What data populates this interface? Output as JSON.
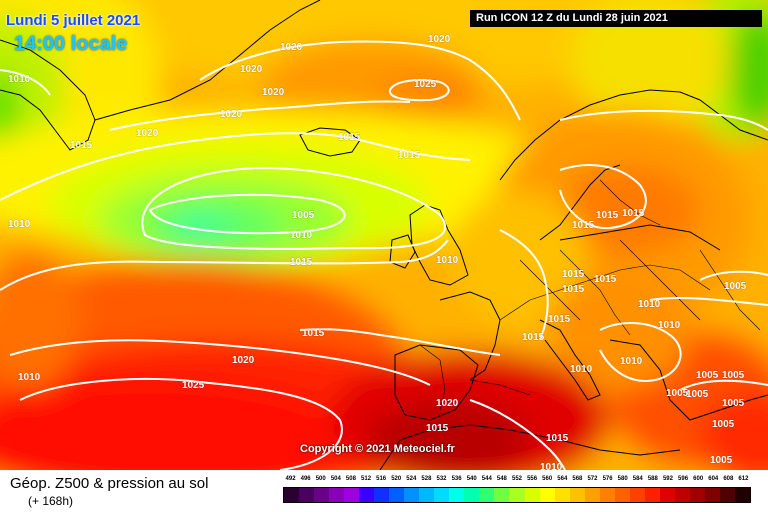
{
  "header": {
    "date": "Lundi 5 juillet 2021",
    "time": "14:00 locale",
    "run": "Run ICON 12 Z du Lundi 28 juin 2021"
  },
  "copyright": "Copyright © 2021 Meteociel.fr",
  "footer": {
    "title": "Géop. Z500 & pression au sol",
    "subtitle": "(+ 168h)"
  },
  "scale": {
    "labels": [
      "492",
      "496",
      "500",
      "504",
      "508",
      "512",
      "516",
      "520",
      "524",
      "528",
      "532",
      "536",
      "540",
      "544",
      "548",
      "552",
      "556",
      "560",
      "564",
      "568",
      "572",
      "576",
      "580",
      "584",
      "588",
      "592",
      "596",
      "600",
      "604",
      "608",
      "612"
    ],
    "colors": [
      "#2a0030",
      "#4a0060",
      "#6a008a",
      "#8a00b8",
      "#a000e0",
      "#3a00ff",
      "#1030ff",
      "#0060ff",
      "#0090ff",
      "#00b8ff",
      "#00dcff",
      "#00ffe8",
      "#00ffb0",
      "#30ff70",
      "#70ff40",
      "#a8ff20",
      "#d8ff00",
      "#ffff00",
      "#ffe000",
      "#ffc000",
      "#ffa000",
      "#ff8000",
      "#ff6000",
      "#ff4000",
      "#ff2000",
      "#e00000",
      "#c00000",
      "#a00000",
      "#800000",
      "#500000",
      "#200000"
    ]
  },
  "isobars": [
    {
      "label": "1020",
      "name": "isobar-label-1020"
    },
    {
      "label": "1020",
      "name": "isobar-label-1020"
    },
    {
      "label": "1020",
      "name": "isobar-label-1020"
    },
    {
      "label": "1020",
      "name": "isobar-label-1020"
    },
    {
      "label": "1020",
      "name": "isobar-label-1020"
    },
    {
      "label": "1020",
      "name": "isobar-label-1020"
    },
    {
      "label": "1025",
      "name": "isobar-label-1025"
    },
    {
      "label": "1010",
      "name": "isobar-label-1010"
    },
    {
      "label": "1015",
      "name": "isobar-label-1015"
    },
    {
      "label": "1015",
      "name": "isobar-label-1015"
    },
    {
      "label": "1015",
      "name": "isobar-label-1015"
    },
    {
      "label": "1005",
      "name": "isobar-label-1005"
    },
    {
      "label": "1010",
      "name": "isobar-label-1010"
    },
    {
      "label": "1010",
      "name": "isobar-label-1010"
    },
    {
      "label": "1015",
      "name": "isobar-label-1015"
    },
    {
      "label": "1010",
      "name": "isobar-label-1010"
    },
    {
      "label": "1015",
      "name": "isobar-label-1015"
    },
    {
      "label": "1015",
      "name": "isobar-label-1015"
    },
    {
      "label": "1015",
      "name": "isobar-label-1015"
    },
    {
      "label": "1015",
      "name": "isobar-label-1015"
    },
    {
      "label": "1015",
      "name": "isobar-label-1015"
    },
    {
      "label": "1015",
      "name": "isobar-label-1015"
    },
    {
      "label": "1015",
      "name": "isobar-label-1015"
    },
    {
      "label": "1005",
      "name": "isobar-label-1005"
    },
    {
      "label": "1010",
      "name": "isobar-label-1010"
    },
    {
      "label": "1010",
      "name": "isobar-label-1010"
    },
    {
      "label": "1010",
      "name": "isobar-label-1010"
    },
    {
      "label": "1010",
      "name": "isobar-label-1010"
    },
    {
      "label": "1005",
      "name": "isobar-label-1005"
    },
    {
      "label": "1005",
      "name": "isobar-label-1005"
    },
    {
      "label": "1005",
      "name": "isobar-label-1005"
    },
    {
      "label": "1005",
      "name": "isobar-label-1005"
    },
    {
      "label": "1005",
      "name": "isobar-label-1005"
    },
    {
      "label": "1020",
      "name": "isobar-label-1020"
    },
    {
      "label": "1025",
      "name": "isobar-label-1025"
    },
    {
      "label": "1010",
      "name": "isobar-label-1010"
    },
    {
      "label": "1020",
      "name": "isobar-label-1020"
    },
    {
      "label": "1015",
      "name": "isobar-label-1015"
    },
    {
      "label": "1015",
      "name": "isobar-label-1015"
    },
    {
      "label": "1010",
      "name": "isobar-label-1010"
    },
    {
      "label": "1005",
      "name": "isobar-label-1005"
    },
    {
      "label": "1005",
      "name": "isobar-label-1005"
    },
    {
      "label": "1015",
      "name": "isobar-label-1015"
    },
    {
      "label": "1015",
      "name": "isobar-label-1015"
    }
  ]
}
